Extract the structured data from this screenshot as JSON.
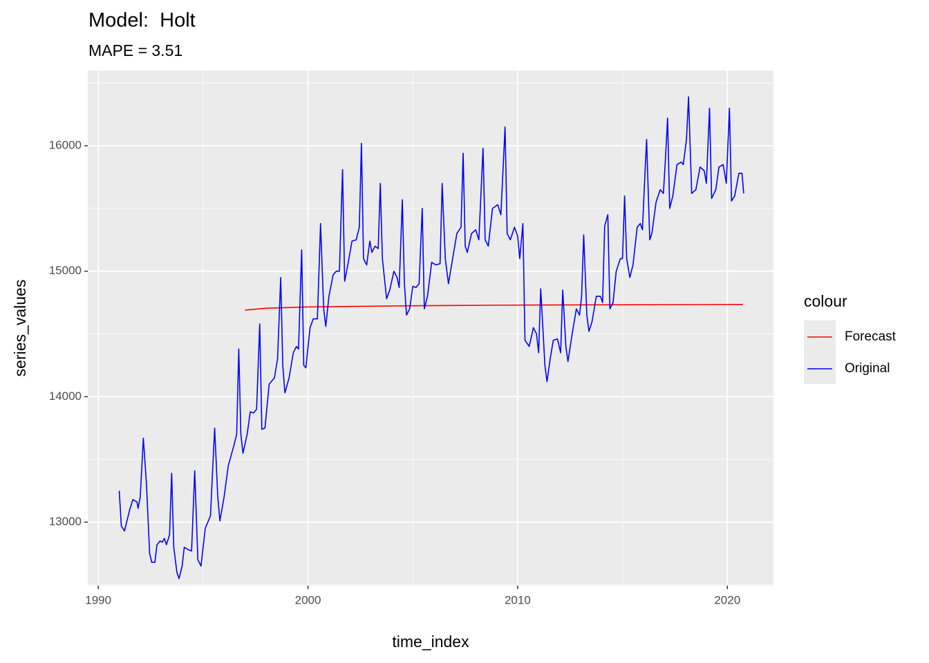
{
  "chart_data": {
    "type": "line",
    "title": "Model:  Holt",
    "subtitle": "MAPE = 3.51",
    "x_label": "time_index",
    "y_label": "series_values",
    "legend_title": "colour",
    "legend_position": "right",
    "grid": true,
    "xlim": [
      1989.5,
      2022.2
    ],
    "ylim": [
      12494,
      16600
    ],
    "xticks": [
      1990,
      2000,
      2010,
      2020
    ],
    "yticks": [
      13000,
      14000,
      15000,
      16000
    ],
    "series": [
      {
        "name": "Forecast",
        "color": "#ff0000",
        "x": [
          1997.0,
          1998.0,
          2000.0,
          2005.0,
          2010.0,
          2020.75
        ],
        "values": [
          14690,
          14705,
          14715,
          14725,
          14730,
          14735
        ]
      },
      {
        "name": "Original",
        "color": "#0000ff",
        "x": [
          1991.0,
          1991.1,
          1991.25,
          1991.5,
          1991.65,
          1991.85,
          1991.9,
          1992.0,
          1992.15,
          1992.3,
          1992.45,
          1992.55,
          1992.7,
          1992.8,
          1992.95,
          1993.05,
          1993.15,
          1993.25,
          1993.4,
          1993.5,
          1993.6,
          1993.75,
          1993.85,
          1994.0,
          1994.1,
          1994.3,
          1994.45,
          1994.6,
          1994.75,
          1994.9,
          1995.1,
          1995.35,
          1995.55,
          1995.7,
          1995.8,
          1996.0,
          1996.2,
          1996.45,
          1996.6,
          1996.7,
          1996.8,
          1996.9,
          1997.1,
          1997.25,
          1997.4,
          1997.55,
          1997.7,
          1997.8,
          1997.95,
          1998.15,
          1998.4,
          1998.55,
          1998.7,
          1998.8,
          1998.9,
          1999.1,
          1999.3,
          1999.45,
          1999.55,
          1999.7,
          1999.8,
          1999.9,
          2000.1,
          2000.25,
          2000.45,
          2000.6,
          2000.75,
          2000.85,
          2001.0,
          2001.2,
          2001.35,
          2001.5,
          2001.65,
          2001.75,
          2001.9,
          2002.1,
          2002.3,
          2002.45,
          2002.55,
          2002.65,
          2002.8,
          2002.95,
          2003.05,
          2003.2,
          2003.35,
          2003.45,
          2003.55,
          2003.75,
          2003.9,
          2004.1,
          2004.25,
          2004.35,
          2004.5,
          2004.6,
          2004.7,
          2004.85,
          2005.0,
          2005.15,
          2005.3,
          2005.45,
          2005.55,
          2005.7,
          2005.9,
          2006.1,
          2006.3,
          2006.4,
          2006.55,
          2006.7,
          2006.9,
          2007.1,
          2007.3,
          2007.4,
          2007.5,
          2007.6,
          2007.8,
          2008.0,
          2008.15,
          2008.35,
          2008.45,
          2008.6,
          2008.8,
          2009.05,
          2009.2,
          2009.4,
          2009.5,
          2009.65,
          2009.85,
          2010.0,
          2010.1,
          2010.25,
          2010.35,
          2010.55,
          2010.75,
          2010.9,
          2011.0,
          2011.1,
          2011.3,
          2011.4,
          2011.55,
          2011.7,
          2011.9,
          2012.05,
          2012.15,
          2012.3,
          2012.4,
          2012.6,
          2012.8,
          2012.95,
          2013.05,
          2013.15,
          2013.3,
          2013.4,
          2013.55,
          2013.75,
          2013.95,
          2014.05,
          2014.15,
          2014.3,
          2014.4,
          2014.55,
          2014.7,
          2014.9,
          2015.0,
          2015.1,
          2015.2,
          2015.35,
          2015.5,
          2015.7,
          2015.85,
          2015.95,
          2016.05,
          2016.15,
          2016.3,
          2016.4,
          2016.6,
          2016.8,
          2016.95,
          2017.05,
          2017.15,
          2017.25,
          2017.4,
          2017.6,
          2017.8,
          2017.9,
          2018.05,
          2018.15,
          2018.3,
          2018.5,
          2018.7,
          2018.9,
          2019.0,
          2019.15,
          2019.25,
          2019.45,
          2019.6,
          2019.8,
          2019.95,
          2020.1,
          2020.2,
          2020.35,
          2020.55,
          2020.7,
          2020.78
        ],
        "values": [
          13250,
          12970,
          12930,
          13100,
          13180,
          13160,
          13110,
          13200,
          13670,
          13300,
          12750,
          12680,
          12680,
          12820,
          12850,
          12840,
          12870,
          12820,
          12900,
          13390,
          12800,
          12600,
          12550,
          12650,
          12800,
          12780,
          12770,
          13410,
          12700,
          12650,
          12950,
          13050,
          13750,
          13200,
          13010,
          13200,
          13450,
          13600,
          13700,
          14380,
          13700,
          13550,
          13700,
          13880,
          13870,
          13900,
          14580,
          13740,
          13750,
          14100,
          14150,
          14300,
          14950,
          14250,
          14030,
          14150,
          14350,
          14400,
          14380,
          15170,
          14250,
          14230,
          14550,
          14620,
          14620,
          15380,
          14700,
          14560,
          14800,
          14970,
          15000,
          15000,
          15810,
          14920,
          15050,
          15240,
          15250,
          15350,
          16020,
          15100,
          15050,
          15240,
          15150,
          15200,
          15180,
          15700,
          15100,
          14780,
          14850,
          15000,
          14950,
          14870,
          15570,
          14900,
          14650,
          14700,
          14880,
          14870,
          14900,
          15500,
          14700,
          14800,
          15070,
          15050,
          15060,
          15700,
          15100,
          14900,
          15100,
          15300,
          15350,
          15940,
          15200,
          15150,
          15300,
          15330,
          15250,
          15980,
          15250,
          15200,
          15500,
          15530,
          15450,
          16150,
          15300,
          15250,
          15350,
          15280,
          15100,
          15380,
          14450,
          14400,
          14550,
          14500,
          14350,
          14860,
          14250,
          14120,
          14300,
          14450,
          14460,
          14350,
          14850,
          14400,
          14280,
          14500,
          14700,
          14650,
          14800,
          15290,
          14650,
          14520,
          14600,
          14800,
          14800,
          14750,
          15360,
          15450,
          14700,
          14750,
          15000,
          15100,
          15100,
          15600,
          15100,
          14950,
          15050,
          15350,
          15380,
          15330,
          15700,
          16050,
          15250,
          15300,
          15550,
          15650,
          15620,
          15900,
          16220,
          15500,
          15600,
          15850,
          15870,
          15850,
          16050,
          16390,
          15620,
          15650,
          15830,
          15800,
          15700,
          16300,
          15580,
          15650,
          15830,
          15850,
          15700,
          16300,
          15560,
          15600,
          15780,
          15780,
          15620
        ]
      }
    ]
  }
}
